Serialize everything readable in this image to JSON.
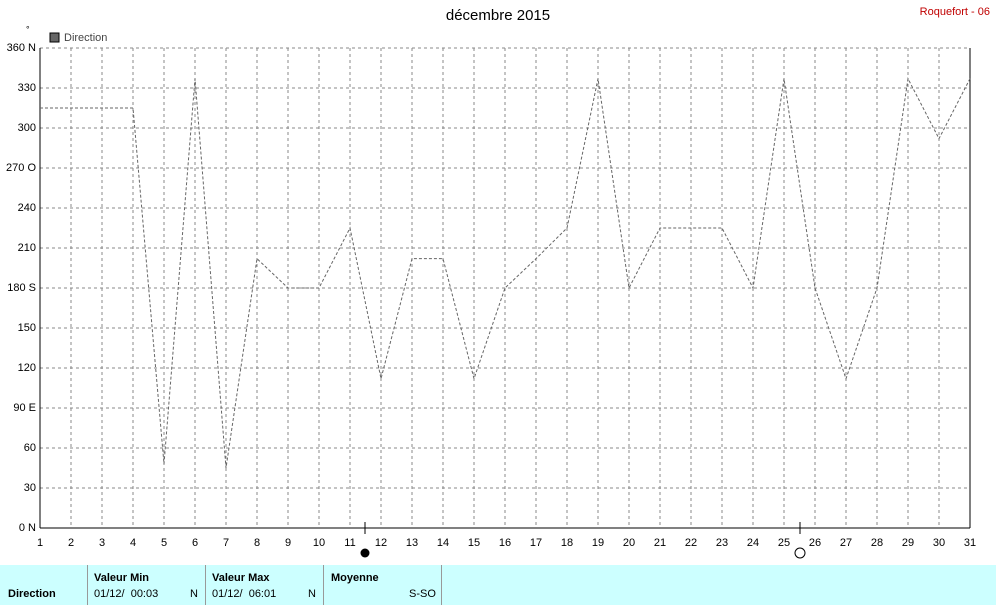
{
  "chart_data": {
    "type": "line",
    "title": "décembre 2015",
    "station": "Roquefort - 06",
    "unit": "°",
    "x": [
      1,
      2,
      3,
      4,
      5,
      6,
      7,
      8,
      9,
      10,
      11,
      12,
      13,
      14,
      15,
      16,
      17,
      18,
      19,
      20,
      21,
      22,
      23,
      24,
      25,
      26,
      27,
      28,
      29,
      30,
      31
    ],
    "xlim": [
      1,
      31
    ],
    "xticks": [
      1,
      2,
      3,
      4,
      5,
      6,
      7,
      8,
      9,
      10,
      11,
      12,
      13,
      14,
      15,
      16,
      17,
      18,
      19,
      20,
      21,
      22,
      23,
      24,
      25,
      26,
      27,
      28,
      29,
      30,
      31
    ],
    "series": [
      {
        "name": "Direction",
        "color": "#666666",
        "values": [
          315,
          315,
          315,
          315,
          48,
          337,
          45,
          202,
          180,
          180,
          225,
          112,
          202,
          202,
          112,
          180,
          202,
          225,
          337,
          180,
          225,
          225,
          225,
          180,
          337,
          180,
          112,
          180,
          337,
          292,
          337
        ]
      }
    ],
    "ylim": [
      0,
      360
    ],
    "yticks": [
      {
        "value": 0,
        "label": "0 N"
      },
      30,
      60,
      {
        "value": 90,
        "label": "90 E"
      },
      120,
      150,
      {
        "value": 180,
        "label": "180 S"
      },
      210,
      240,
      {
        "value": 270,
        "label": "270 O"
      },
      300,
      330,
      {
        "value": 360,
        "label": "360 N"
      }
    ],
    "grid": true
  },
  "summary": {
    "row_label": "Direction",
    "min": {
      "header": "Valeur Min",
      "date": "01/12/  00:03",
      "dir": "N"
    },
    "max": {
      "header": "Valeur Max",
      "date": "01/12/  06:01",
      "dir": "N"
    },
    "mean": {
      "header": "Moyenne",
      "dir": "S-SO"
    }
  }
}
